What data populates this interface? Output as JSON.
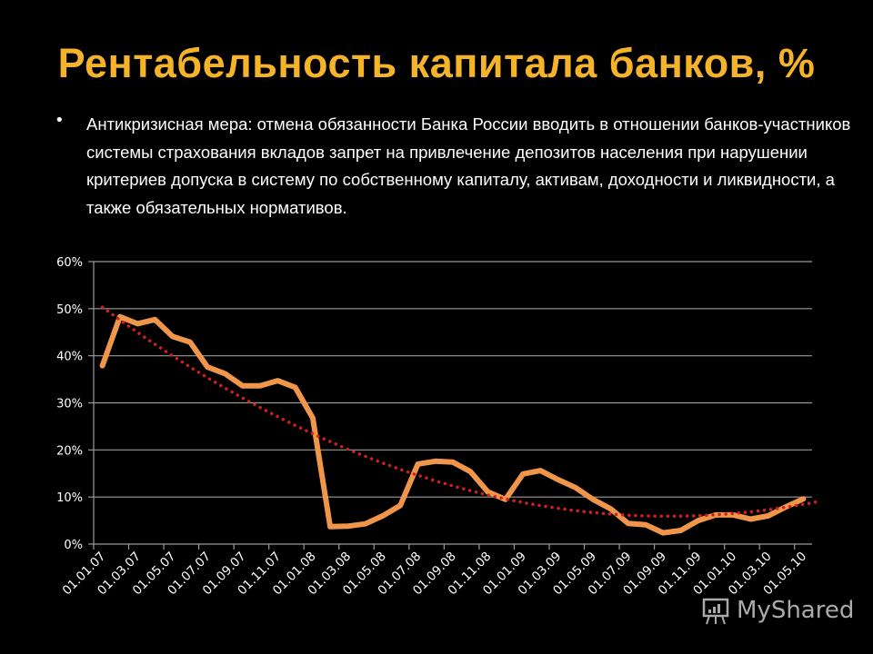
{
  "slide": {
    "title": "Рентабельность капитала банков, %",
    "bullet": "Антикризисная мера: отмена обязанности Банка России вводить в отношении банков-участников системы страхования вкладов запрет на привлечение депозитов населения при нарушении критериев допуска в систему по собственному капиталу, активам, доходности и ликвидности, а также обязательных нормативов.",
    "title_color": "#F5B32A",
    "watermark": "MyShared"
  },
  "chart_data": {
    "type": "line",
    "title": "",
    "xlabel": "",
    "ylabel": "",
    "ylim": [
      0,
      60
    ],
    "y_ticks": [
      "0%",
      "10%",
      "20%",
      "30%",
      "40%",
      "50%",
      "60%"
    ],
    "y_tick_values": [
      0,
      10,
      20,
      30,
      40,
      50,
      60
    ],
    "x_tick_labels": [
      "01.01.07",
      "01.03.07",
      "01.05.07",
      "01.07.07",
      "01.09.07",
      "01.11.07",
      "01.01.08",
      "01.03.08",
      "01.05.08",
      "01.07.08",
      "01.09.08",
      "01.11.08",
      "01.01.09",
      "01.03.09",
      "01.05.09",
      "01.07.09",
      "01.09.09",
      "01.11.09",
      "01.01.10",
      "01.03.10",
      "01.05.10"
    ],
    "frequency": "monthly",
    "grid": true,
    "series": [
      {
        "color": "#F0964A",
        "values": [
          37.9,
          48.3,
          46.8,
          47.7,
          44.1,
          42.9,
          37.6,
          36.2,
          33.6,
          33.6,
          34.7,
          33.3,
          26.8,
          3.7,
          3.8,
          4.3,
          6.0,
          8.2,
          17.0,
          17.6,
          17.4,
          15.4,
          11.1,
          9.5,
          14.9,
          15.6,
          13.7,
          12.0,
          9.5,
          7.5,
          4.4,
          4.1,
          2.4,
          2.9,
          5.0,
          6.2,
          6.2,
          5.3,
          6.0,
          7.9,
          9.6
        ]
      }
    ],
    "trendline": {
      "type": "polynomial",
      "order": 2,
      "style": "dotted",
      "color": "#D0201E"
    }
  }
}
